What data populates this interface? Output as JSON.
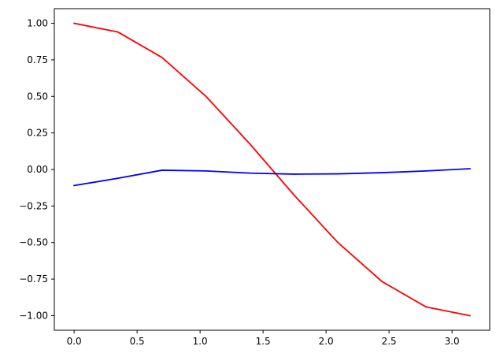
{
  "chart_data": {
    "type": "line",
    "title": "",
    "xlabel": "",
    "ylabel": "",
    "xlim": [
      -0.157,
      3.299
    ],
    "ylim": [
      -1.1,
      1.1
    ],
    "grid": false,
    "x_ticks": [
      0.0,
      0.5,
      1.0,
      1.5,
      2.0,
      2.5,
      3.0
    ],
    "x_tick_labels": [
      "0.0",
      "0.5",
      "1.0",
      "1.5",
      "2.0",
      "2.5",
      "3.0"
    ],
    "y_ticks": [
      1.0,
      0.75,
      0.5,
      0.25,
      0.0,
      -0.25,
      -0.5,
      -0.75,
      -1.0
    ],
    "y_tick_labels": [
      "1.00",
      "0.75",
      "0.50",
      "0.25",
      "0.00",
      "−0.25",
      "−0.50",
      "−0.75",
      "−1.00"
    ],
    "x": [
      0.0,
      0.349,
      0.698,
      1.047,
      1.396,
      1.745,
      2.094,
      2.443,
      2.793,
      3.142
    ],
    "series": [
      {
        "color": "#ff0000",
        "values": [
          1.0,
          0.94,
          0.766,
          0.5,
          0.174,
          -0.174,
          -0.5,
          -0.766,
          -0.94,
          -1.0
        ]
      },
      {
        "color": "#0000ff",
        "values": [
          -0.11,
          -0.06,
          -0.005,
          -0.01,
          -0.025,
          -0.032,
          -0.03,
          -0.022,
          -0.01,
          0.005
        ]
      }
    ]
  }
}
